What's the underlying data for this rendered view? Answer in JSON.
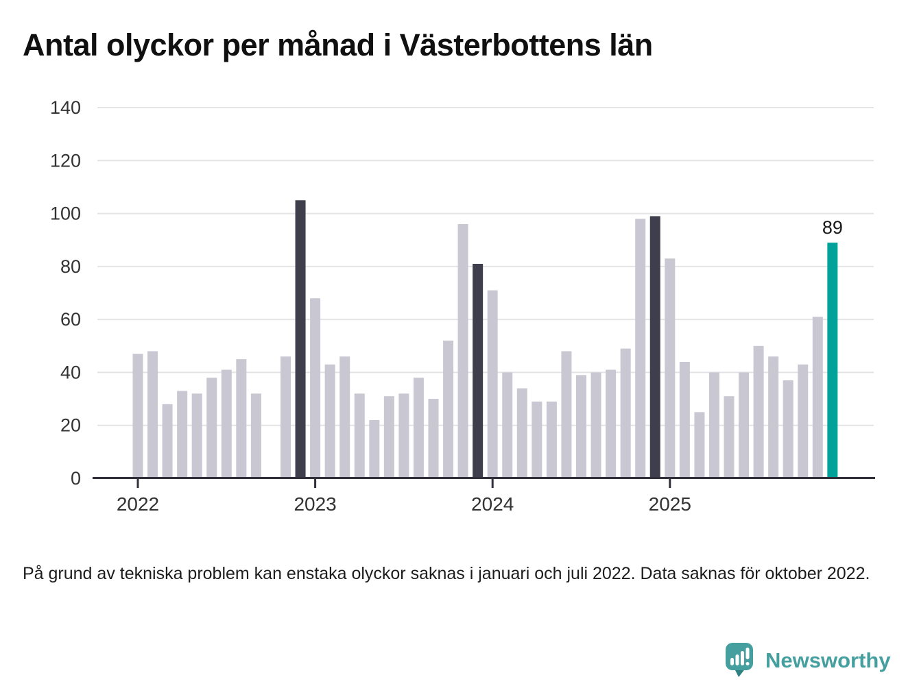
{
  "title": {
    "text": "Antal olyckor per månad i Västerbottens län"
  },
  "footnote": {
    "text": "På grund av tekniska problem kan enstaka olyckor saknas i januari och juli 2022. Data saknas för oktober 2022."
  },
  "logo": {
    "text": "Newsworthy",
    "icon": "speech-bubble-bar-chart-icon"
  },
  "annotation": {
    "latest_value_label": "89"
  },
  "colors": {
    "bar_default": "#c9c7d1",
    "bar_december": "#3f3e4c",
    "bar_latest": "#00a29a",
    "gridline": "#e4e4e7",
    "axis": "#32313b",
    "tick_label": "#333333",
    "annotation_text": "#1a1a1a",
    "logo_teal": "#459f9f",
    "logo_tail": "#2d8181"
  },
  "chart_data": {
    "type": "bar",
    "title": "Antal olyckor per månad i Västerbottens län",
    "xlabel": "",
    "ylabel": "",
    "ylim": [
      0,
      140
    ],
    "yticks": [
      0,
      20,
      40,
      60,
      80,
      100,
      120,
      140
    ],
    "grid": "horizontal",
    "legend": "none",
    "x": [
      "2022-01",
      "2022-02",
      "2022-03",
      "2022-04",
      "2022-05",
      "2022-06",
      "2022-07",
      "2022-08",
      "2022-09",
      "2022-10",
      "2022-11",
      "2022-12",
      "2023-01",
      "2023-02",
      "2023-03",
      "2023-04",
      "2023-05",
      "2023-06",
      "2023-07",
      "2023-08",
      "2023-09",
      "2023-10",
      "2023-11",
      "2023-12",
      "2024-01",
      "2024-02",
      "2024-03",
      "2024-04",
      "2024-05",
      "2024-06",
      "2024-07",
      "2024-08",
      "2024-09",
      "2024-10",
      "2024-11",
      "2024-12",
      "2025-01",
      "2025-02",
      "2025-03",
      "2025-04",
      "2025-05",
      "2025-06",
      "2025-07",
      "2025-08",
      "2025-09",
      "2025-10",
      "2025-11",
      "2025-12"
    ],
    "values": [
      47,
      48,
      28,
      33,
      32,
      38,
      41,
      45,
      32,
      null,
      46,
      105,
      68,
      43,
      46,
      32,
      22,
      31,
      32,
      38,
      30,
      52,
      96,
      81,
      71,
      40,
      34,
      29,
      29,
      48,
      39,
      40,
      41,
      49,
      98,
      99,
      83,
      44,
      25,
      40,
      31,
      40,
      50,
      46,
      37,
      43,
      61,
      89
    ],
    "missing_months": [
      "2022-10"
    ],
    "highlight_december_indices": [
      11,
      23,
      35
    ],
    "latest_index": 47,
    "latest_value": 89,
    "xticks": [
      {
        "label": "2022",
        "month_index": 0
      },
      {
        "label": "2023",
        "month_index": 12
      },
      {
        "label": "2024",
        "month_index": 24
      },
      {
        "label": "2025",
        "month_index": 36
      }
    ]
  }
}
